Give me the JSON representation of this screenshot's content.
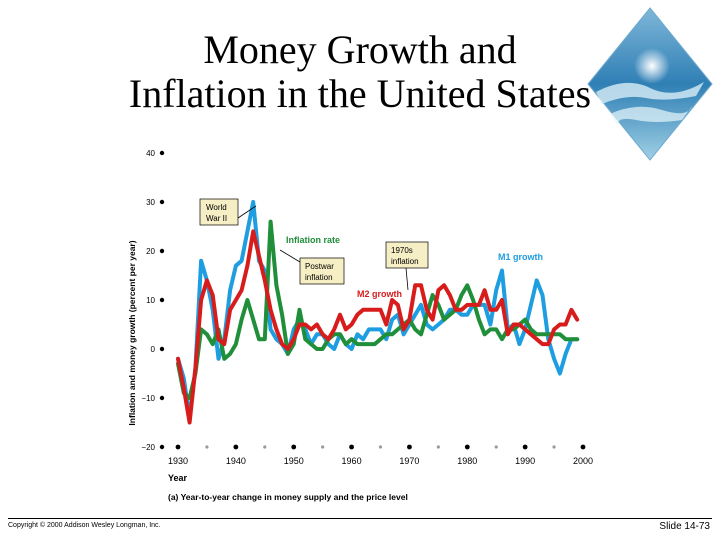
{
  "slide": {
    "title_line1": "Money Growth and",
    "title_line2": "Inflation in the United States",
    "copyright": "Copyright © 2000 Addison Wesley Longman, Inc.",
    "slide_number": "Slide 14-73"
  },
  "chart_data": {
    "type": "line",
    "title": "",
    "caption": "(a) Year-to-year change in money supply and the price level",
    "xlabel": "Year",
    "ylabel": "Inflation and money growth (percent per year)",
    "xlim": [
      1930,
      2000
    ],
    "ylim": [
      -20,
      40
    ],
    "xticks": [
      1930,
      1940,
      1950,
      1960,
      1970,
      1980,
      1990,
      2000
    ],
    "yticks": [
      -20,
      -10,
      0,
      10,
      20,
      30,
      40
    ],
    "colors": {
      "m1": "#1e9ee0",
      "m2": "#d81c1c",
      "inflation": "#1f8f3a"
    },
    "series": [
      {
        "key": "m1",
        "name": "M1 growth",
        "x": [
          1930,
          1931,
          1932,
          1933,
          1934,
          1935,
          1936,
          1937,
          1938,
          1939,
          1940,
          1941,
          1942,
          1943,
          1944,
          1945,
          1946,
          1947,
          1948,
          1949,
          1950,
          1951,
          1952,
          1953,
          1954,
          1955,
          1956,
          1957,
          1958,
          1959,
          1960,
          1961,
          1962,
          1963,
          1964,
          1965,
          1966,
          1967,
          1968,
          1969,
          1970,
          1971,
          1972,
          1973,
          1974,
          1975,
          1976,
          1977,
          1978,
          1979,
          1980,
          1981,
          1982,
          1983,
          1984,
          1985,
          1986,
          1987,
          1988,
          1989,
          1990,
          1991,
          1992,
          1993,
          1994,
          1995,
          1996,
          1997,
          1998,
          1999
        ],
        "y": [
          -2,
          -6,
          -14,
          -4,
          18,
          14,
          8,
          -2,
          2,
          12,
          17,
          18,
          24,
          30,
          18,
          16,
          4,
          2,
          1,
          -1,
          4,
          6,
          4,
          1,
          3,
          3,
          1,
          0,
          3,
          1,
          0,
          3,
          2,
          4,
          4,
          4,
          2,
          6,
          7,
          3,
          5,
          7,
          9,
          5,
          4,
          5,
          6,
          8,
          8,
          7,
          7,
          9,
          9,
          9,
          5,
          12,
          16,
          4,
          5,
          1,
          4,
          9,
          14,
          11,
          2,
          -2,
          -5,
          -1,
          2,
          2
        ]
      },
      {
        "key": "m2",
        "name": "M2 growth",
        "x": [
          1930,
          1931,
          1932,
          1933,
          1934,
          1935,
          1936,
          1937,
          1938,
          1939,
          1940,
          1941,
          1942,
          1943,
          1944,
          1945,
          1946,
          1947,
          1948,
          1949,
          1950,
          1951,
          1952,
          1953,
          1954,
          1955,
          1956,
          1957,
          1958,
          1959,
          1960,
          1961,
          1962,
          1963,
          1964,
          1965,
          1966,
          1967,
          1968,
          1969,
          1970,
          1971,
          1972,
          1973,
          1974,
          1975,
          1976,
          1977,
          1978,
          1979,
          1980,
          1981,
          1982,
          1983,
          1984,
          1985,
          1986,
          1987,
          1988,
          1989,
          1990,
          1991,
          1992,
          1993,
          1994,
          1995,
          1996,
          1997,
          1998,
          1999
        ],
        "y": [
          -2,
          -8,
          -15,
          -4,
          10,
          14,
          11,
          2,
          1,
          8,
          10,
          12,
          17,
          24,
          19,
          14,
          8,
          4,
          1,
          0,
          2,
          5,
          5,
          4,
          5,
          3,
          2,
          4,
          7,
          4,
          5,
          7,
          8,
          8,
          8,
          8,
          5,
          10,
          9,
          4,
          6,
          13,
          13,
          8,
          6,
          12,
          13,
          11,
          8,
          8,
          9,
          9,
          9,
          12,
          8,
          8,
          10,
          3,
          5,
          5,
          4,
          3,
          2,
          1,
          1,
          4,
          5,
          5,
          8,
          6
        ]
      },
      {
        "key": "inflation",
        "name": "Inflation rate",
        "x": [
          1930,
          1931,
          1932,
          1933,
          1934,
          1935,
          1936,
          1937,
          1938,
          1939,
          1940,
          1941,
          1942,
          1943,
          1944,
          1945,
          1946,
          1947,
          1948,
          1949,
          1950,
          1951,
          1952,
          1953,
          1954,
          1955,
          1956,
          1957,
          1958,
          1959,
          1960,
          1961,
          1962,
          1963,
          1964,
          1965,
          1966,
          1967,
          1968,
          1969,
          1970,
          1971,
          1972,
          1973,
          1974,
          1975,
          1976,
          1977,
          1978,
          1979,
          1980,
          1981,
          1982,
          1983,
          1984,
          1985,
          1986,
          1987,
          1988,
          1989,
          1990,
          1991,
          1992,
          1993,
          1994,
          1995,
          1996,
          1997,
          1998,
          1999
        ],
        "y": [
          -3,
          -9,
          -10,
          -5,
          4,
          3,
          1,
          4,
          -2,
          -1,
          1,
          6,
          10,
          6,
          2,
          2,
          26,
          13,
          7,
          -1,
          1,
          8,
          2,
          1,
          0,
          0,
          2,
          3,
          3,
          1,
          2,
          1,
          1,
          1,
          1,
          2,
          3,
          3,
          4,
          5,
          6,
          4,
          3,
          7,
          11,
          9,
          6,
          7,
          8,
          11,
          13,
          10,
          6,
          3,
          4,
          4,
          2,
          4,
          4,
          5,
          6,
          4,
          3,
          3,
          3,
          3,
          3,
          2,
          2,
          2
        ]
      }
    ],
    "annotations": [
      {
        "text": "World War II",
        "lines": [
          "World",
          "War II"
        ],
        "boxed": true
      },
      {
        "text": "Postwar inflation",
        "lines": [
          "Postwar",
          "inflation"
        ],
        "boxed": true
      },
      {
        "text": "1970s inflation",
        "lines": [
          "1970s",
          "inflation"
        ],
        "boxed": true
      }
    ]
  }
}
